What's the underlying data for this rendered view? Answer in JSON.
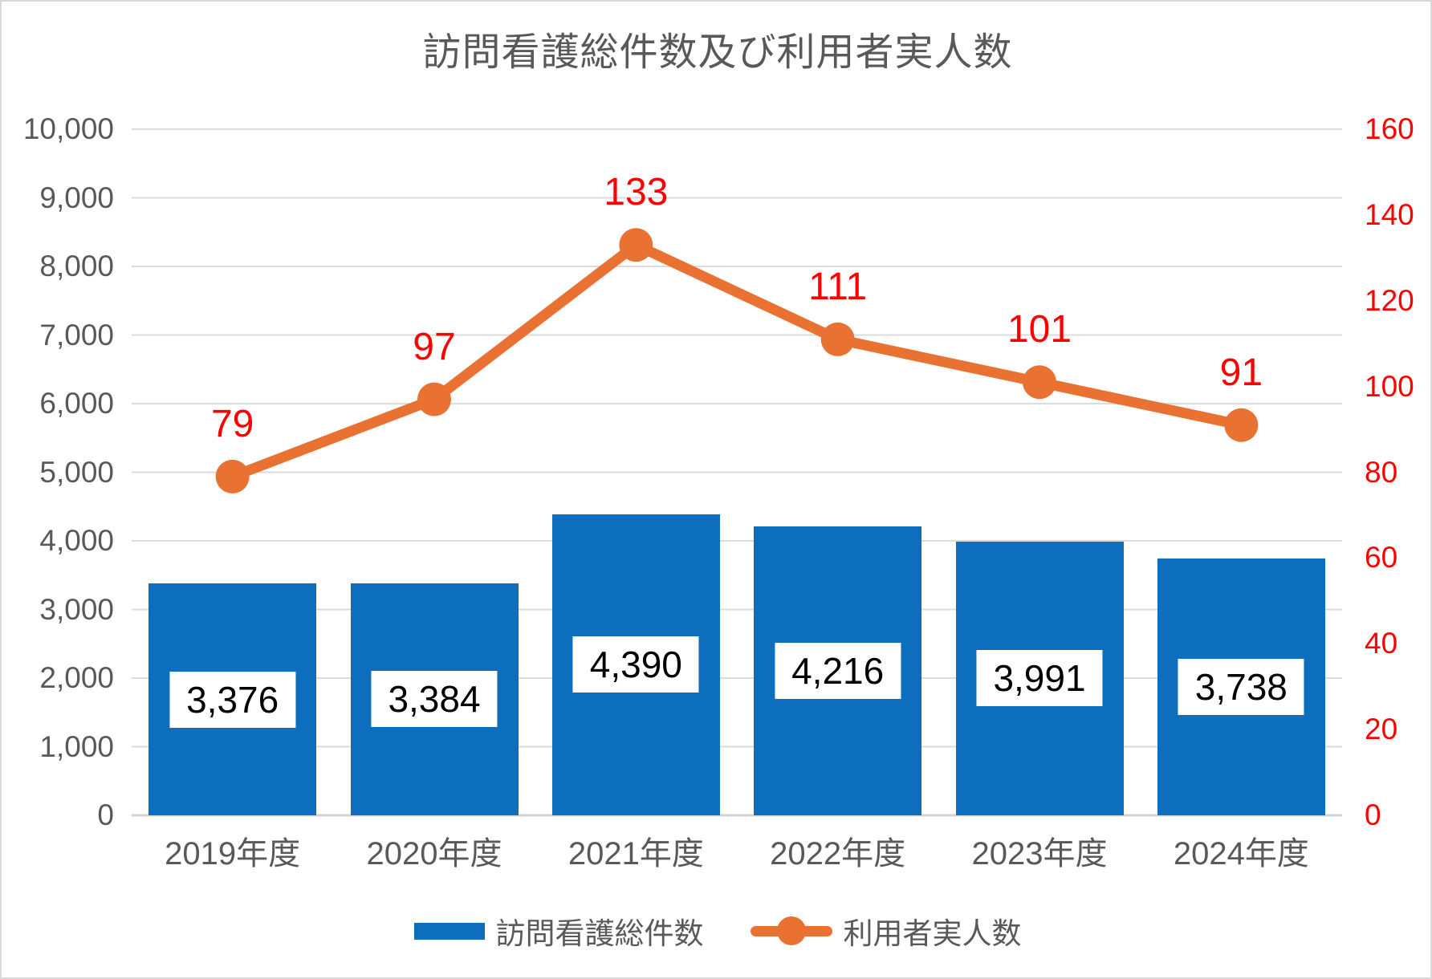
{
  "chart_data": {
    "type": "bar-line-combo",
    "title": "訪問看護総件数及び利用者実人数",
    "categories": [
      "2019年度",
      "2020年度",
      "2021年度",
      "2022年度",
      "2023年度",
      "2024年度"
    ],
    "series": [
      {
        "name": "訪問看護総件数",
        "type": "bar",
        "axis": "left",
        "values": [
          3376,
          3384,
          4390,
          4216,
          3991,
          3738
        ],
        "value_labels": [
          "3,376",
          "3,384",
          "4,390",
          "4,216",
          "3,991",
          "3,738"
        ],
        "color": "#0d6ebe",
        "label_text_color": "#000000",
        "label_bg_color": "#ffffff"
      },
      {
        "name": "利用者実人数",
        "type": "line",
        "axis": "right",
        "values": [
          79,
          97,
          133,
          111,
          101,
          91
        ],
        "value_labels": [
          "79",
          "97",
          "133",
          "111",
          "101",
          "91"
        ],
        "color": "#e97132",
        "label_text_color": "#ff0000"
      }
    ],
    "left_axis": {
      "min": 0,
      "max": 10000,
      "step": 1000,
      "tick_labels": [
        "0",
        "1,000",
        "2,000",
        "3,000",
        "4,000",
        "5,000",
        "6,000",
        "7,000",
        "8,000",
        "9,000",
        "10,000"
      ],
      "tick_color": "#595959"
    },
    "right_axis": {
      "min": 0,
      "max": 160,
      "step": 20,
      "tick_labels": [
        "0",
        "20",
        "40",
        "60",
        "80",
        "100",
        "120",
        "140",
        "160"
      ],
      "tick_color": "#ff0000"
    },
    "grid": true,
    "gridline_color": "#dbdbdb",
    "baseline_color": "#d2d2d2",
    "legend_position": "bottom",
    "title_color": "#595959",
    "axis_text_color": "#595959"
  }
}
